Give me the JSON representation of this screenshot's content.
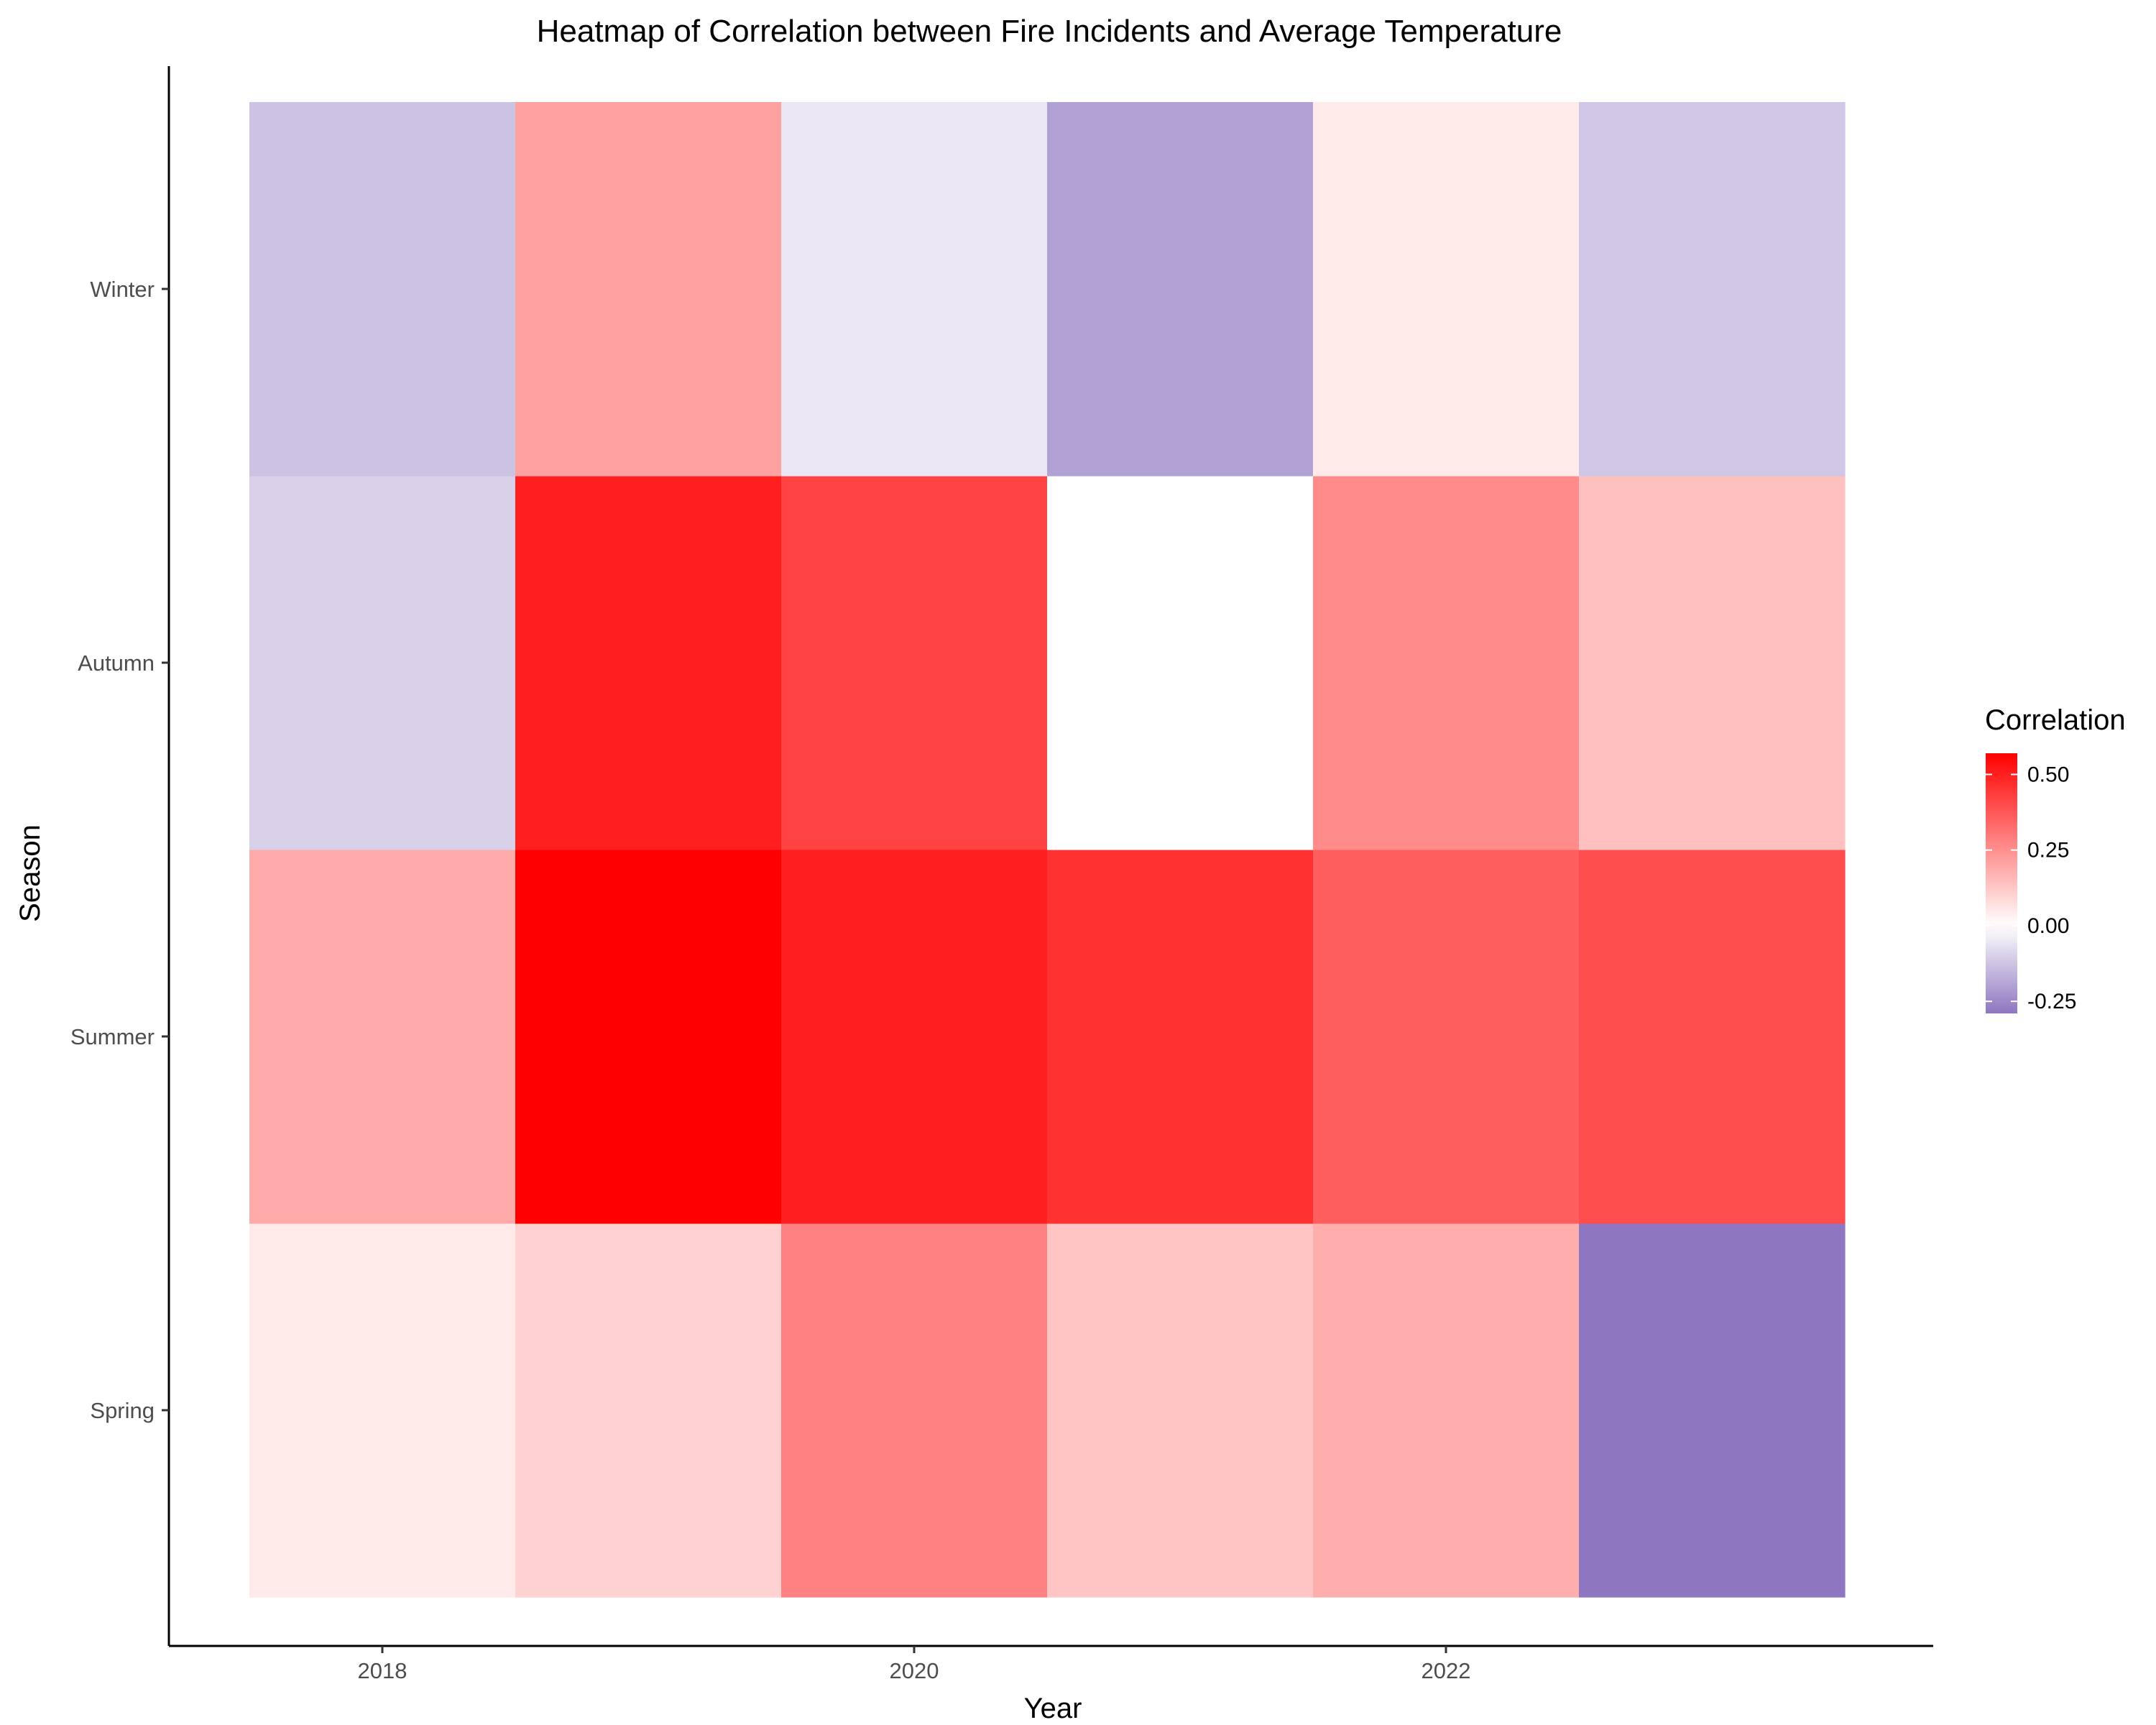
{
  "chart_data": {
    "type": "heatmap",
    "title": "Heatmap of Correlation between Fire Incidents and Average Temperature",
    "xlabel": "Year",
    "ylabel": "Season",
    "x": [
      2018,
      2019,
      2020,
      2021,
      2022,
      2023
    ],
    "x_tick_labels": [
      "2018",
      "2020",
      "2022"
    ],
    "y": [
      "Spring",
      "Summer",
      "Autumn",
      "Winter"
    ],
    "values": [
      [
        0.05,
        0.1,
        0.28,
        0.13,
        0.18,
        -0.29
      ],
      [
        0.19,
        0.57,
        0.5,
        0.46,
        0.36,
        0.4
      ],
      [
        -0.1,
        0.5,
        0.42,
        0.0,
        0.26,
        0.14
      ],
      [
        -0.13,
        0.21,
        -0.05,
        -0.2,
        0.05,
        -0.12
      ]
    ],
    "legend": {
      "title": "Correlation",
      "ticks": [
        "0.50",
        "0.25",
        "0.00",
        "-0.25"
      ],
      "tick_values": [
        0.5,
        0.25,
        0.0,
        -0.25
      ],
      "range": [
        -0.29,
        0.57
      ],
      "colors": {
        "low": "#8e76c0",
        "mid": "#ffffff",
        "high": "#ff0000"
      },
      "position": "right"
    },
    "grid": false
  }
}
